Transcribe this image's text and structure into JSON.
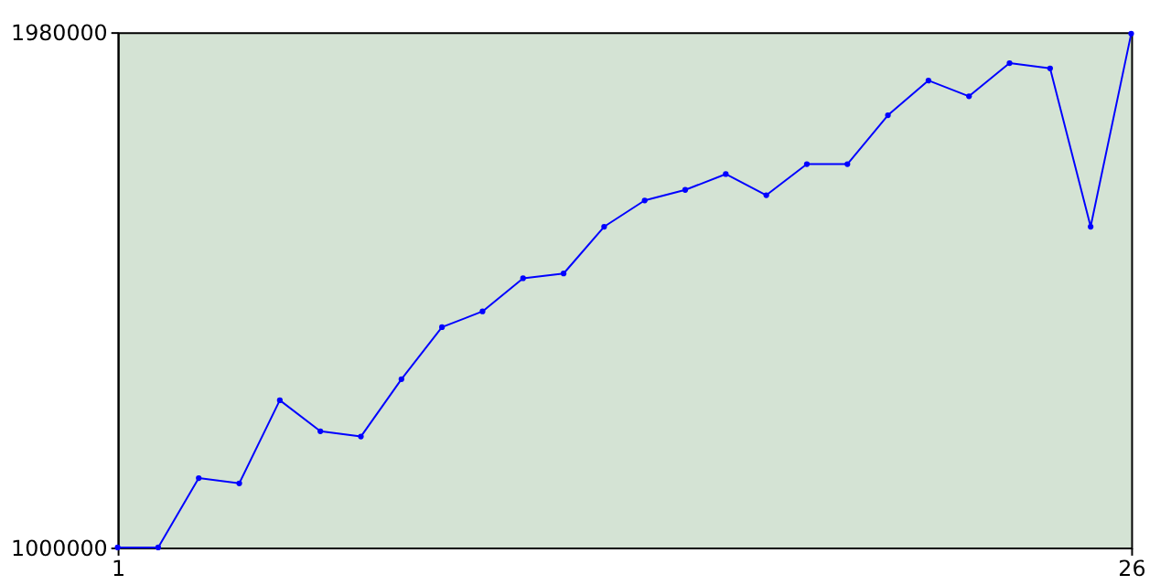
{
  "chart_data": {
    "type": "line",
    "x": [
      1,
      2,
      3,
      4,
      5,
      6,
      7,
      8,
      9,
      10,
      11,
      12,
      13,
      14,
      15,
      16,
      17,
      18,
      19,
      20,
      21,
      22,
      23,
      24,
      25,
      26
    ],
    "series": [
      {
        "color": "#0000ff",
        "values": [
          1000000,
          1000000,
          1132000,
          1122000,
          1280000,
          1221000,
          1211000,
          1320000,
          1419000,
          1449000,
          1512000,
          1521000,
          1610000,
          1660000,
          1680000,
          1710000,
          1670000,
          1729000,
          1729000,
          1822000,
          1888000,
          1858000,
          1921000,
          1911000,
          1610000,
          1977000
        ]
      }
    ],
    "xlim": [
      1,
      26
    ],
    "xticks": [
      1,
      26
    ],
    "ylim": [
      1000000,
      1980000
    ],
    "yticks": [
      1000000,
      1980000
    ],
    "grid": false,
    "marker": "circle",
    "line_style": "solid"
  }
}
